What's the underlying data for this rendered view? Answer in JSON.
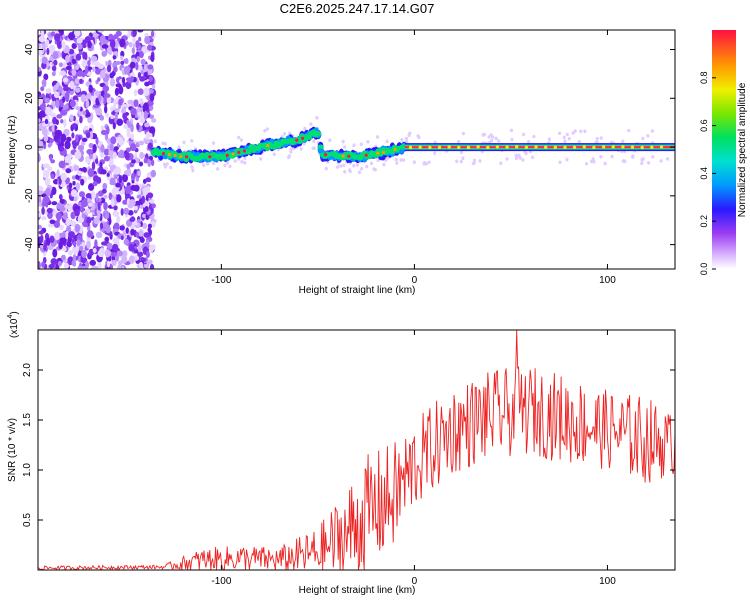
{
  "title": "C2E6.2025.247.17.14.G07",
  "chart_data": [
    {
      "type": "heatmap",
      "xlabel": "Height of straight line (km)",
      "ylabel": "Frequency (Hz)",
      "xlim": [
        -195,
        135
      ],
      "ylim": [
        -50,
        48
      ],
      "xticks": [
        -100,
        0,
        100
      ],
      "yticks": [
        -40,
        -20,
        0,
        20,
        40
      ],
      "colorbar": {
        "label": "Normalized spectral amplitude",
        "range": [
          0,
          1
        ],
        "ticks": [
          "0.0",
          "0.2",
          "0.4",
          "0.6",
          "0.8"
        ]
      },
      "signal_trace": [
        {
          "x": -135,
          "freq": -2
        },
        {
          "x": -120,
          "freq": -4
        },
        {
          "x": -100,
          "freq": -4
        },
        {
          "x": -80,
          "freq": 0
        },
        {
          "x": -60,
          "freq": 3
        },
        {
          "x": -50,
          "freq": 6
        },
        {
          "x": -48,
          "freq": -3
        },
        {
          "x": -30,
          "freq": -4
        },
        {
          "x": -15,
          "freq": -2
        },
        {
          "x": -5,
          "freq": 0
        },
        {
          "x": 0,
          "freq": 0
        },
        {
          "x": 135,
          "freq": 0
        }
      ]
    },
    {
      "type": "line",
      "xlabel": "Height of straight line (km)",
      "ylabel": "SNR (10 * v/v)",
      "exponent_label": "(x10",
      "exponent_power": "4",
      "exponent_close": ")",
      "xlim": [
        -195,
        135
      ],
      "ylim": [
        0,
        2.4
      ],
      "xticks": [
        -100,
        0,
        100
      ],
      "yticks": [
        "0.5",
        "1.0",
        "1.5",
        "2.0"
      ],
      "series": [
        {
          "name": "SNR",
          "color": "#ee2222",
          "envelope": [
            {
              "x": -195,
              "mean": 0.02,
              "spread": 0.02
            },
            {
              "x": -130,
              "mean": 0.03,
              "spread": 0.02
            },
            {
              "x": -110,
              "mean": 0.1,
              "spread": 0.12
            },
            {
              "x": -90,
              "mean": 0.12,
              "spread": 0.13
            },
            {
              "x": -70,
              "mean": 0.1,
              "spread": 0.13
            },
            {
              "x": -50,
              "mean": 0.18,
              "spread": 0.25
            },
            {
              "x": -35,
              "mean": 0.35,
              "spread": 0.5
            },
            {
              "x": -25,
              "mean": 0.55,
              "spread": 0.6
            },
            {
              "x": -10,
              "mean": 0.75,
              "spread": 0.55
            },
            {
              "x": 0,
              "mean": 1.05,
              "spread": 0.45
            },
            {
              "x": 20,
              "mean": 1.4,
              "spread": 0.45
            },
            {
              "x": 40,
              "mean": 1.55,
              "spread": 0.45
            },
            {
              "x": 60,
              "mean": 1.6,
              "spread": 0.45
            },
            {
              "x": 80,
              "mean": 1.5,
              "spread": 0.45
            },
            {
              "x": 100,
              "mean": 1.4,
              "spread": 0.4
            },
            {
              "x": 120,
              "mean": 1.3,
              "spread": 0.45
            },
            {
              "x": 135,
              "mean": 1.25,
              "spread": 0.3
            }
          ],
          "peak": {
            "x": 53,
            "y": 2.4
          }
        }
      ]
    }
  ],
  "colors": {
    "line": "#ee2222",
    "axis": "#000000",
    "noise": "#8a3cf0"
  }
}
